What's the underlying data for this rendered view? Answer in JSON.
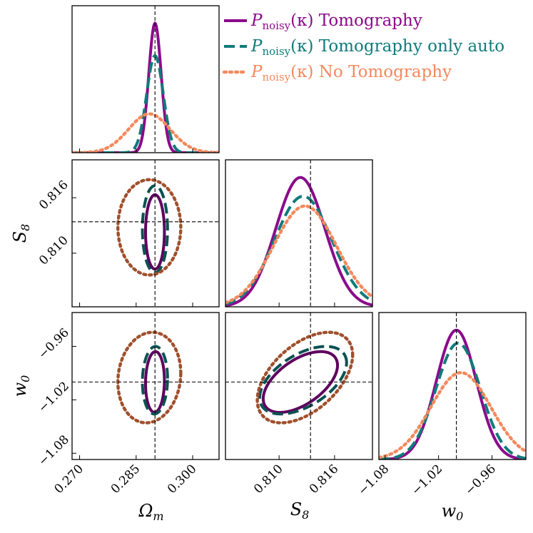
{
  "chart_data": {
    "type": "corner",
    "parameters": [
      {
        "symbol": "Ω",
        "sub": "m",
        "fiducial": 0.29,
        "range": [
          0.268,
          0.307
        ],
        "ticks": [
          "0.270",
          "0.285",
          "0.300"
        ]
      },
      {
        "symbol": "S",
        "sub": "8",
        "fiducial": 0.8134,
        "range": [
          0.8042,
          0.8201
        ],
        "ticks": [
          "0.810",
          "0.816"
        ]
      },
      {
        "symbol": "w",
        "sub": "0",
        "fiducial": -1.0,
        "range": [
          -1.087,
          -0.922
        ],
        "ticks": [
          "−1.08",
          "−1.02",
          "−0.96"
        ]
      }
    ],
    "series": [
      {
        "name": "Tomography",
        "legend_prefix": "P",
        "legend_sub": "noisy",
        "legend_arg": "(κ)",
        "legend_label": "Tomography",
        "line_color": "#8b0a8b",
        "contour_color": "#5e005e",
        "style": "solid",
        "mean": [
          0.29,
          0.8123,
          -1.0
        ],
        "sigma": [
          0.00165,
          0.00265,
          0.0225
        ],
        "corr": {
          "omega_s8": 0.0,
          "omega_w0": 0.05,
          "s8_w0": 0.55
        }
      },
      {
        "name": "Tomography only auto",
        "legend_prefix": "P",
        "legend_sub": "noisy",
        "legend_arg": "(κ)",
        "legend_label": "Tomography only auto",
        "line_color": "#127a7a",
        "contour_color": "#0b5252",
        "style": "dashed",
        "mean": [
          0.29,
          0.8126,
          -0.998
        ],
        "sigma": [
          0.0022,
          0.0031,
          0.025
        ],
        "corr": {
          "omega_s8": 0.0,
          "omega_w0": 0.05,
          "s8_w0": 0.52
        }
      },
      {
        "name": "No Tomography",
        "legend_prefix": "P",
        "legend_sub": "noisy",
        "legend_arg": "(κ)",
        "legend_label": "No Tomography",
        "line_color": "#f4895e",
        "contour_color": "#a0502d",
        "style": "dotted",
        "mean": [
          0.2885,
          0.8128,
          -0.995
        ],
        "sigma": [
          0.0055,
          0.0034,
          0.0335
        ],
        "corr": {
          "omega_s8": 0.0,
          "omega_w0": 0.1,
          "s8_w0": 0.5
        }
      }
    ],
    "grid": false,
    "legend_position": "top-right"
  }
}
